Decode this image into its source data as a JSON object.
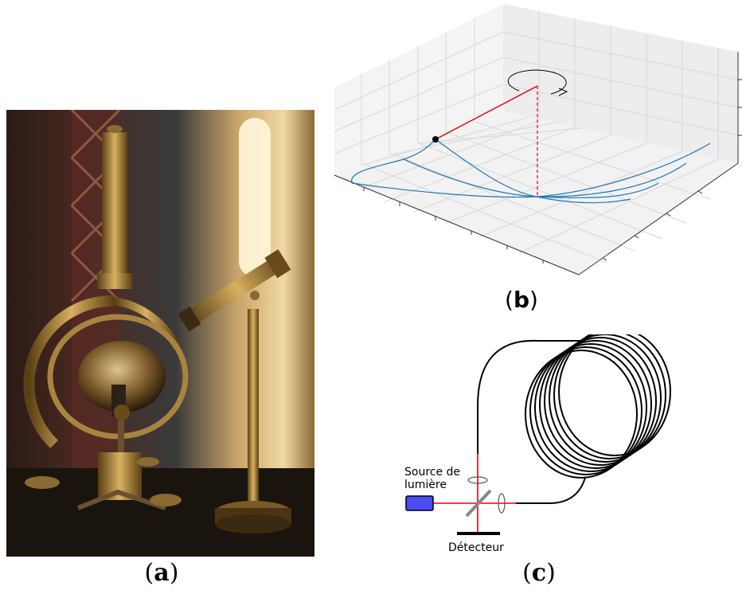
{
  "captions": {
    "a_open": "(",
    "a_letter": "a",
    "a_close": ")",
    "b_open": "(",
    "b_letter": "b",
    "b_close": ")",
    "c_open": "(",
    "c_letter": "c",
    "c_close": ")"
  },
  "optics": {
    "source_line1": "Source de",
    "source_line2": "lumière",
    "detector": "Détecteur"
  },
  "colors": {
    "beam": "#e8000b",
    "trajectory": "#1f77b4",
    "source": "#4a4cf5",
    "brass": "#b08a3c"
  },
  "icons": {
    "rotation": "circular-arrow-icon"
  }
}
